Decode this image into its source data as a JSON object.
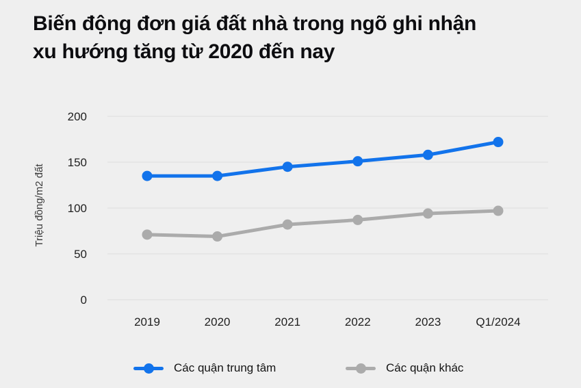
{
  "page": {
    "background": "#efefef"
  },
  "title": {
    "line1": "Biến động đơn giá đất nhà trong ngõ ghi nhận",
    "line2": "xu hướng tăng từ 2020 đến nay"
  },
  "chart_data": {
    "type": "line",
    "categories": [
      "2019",
      "2020",
      "2021",
      "2022",
      "2023",
      "Q1/2024"
    ],
    "series": [
      {
        "name": "Các quận trung tâm",
        "color": "#1273eb",
        "values": [
          135,
          135,
          145,
          151,
          158,
          172
        ]
      },
      {
        "name": "Các quận khác",
        "color": "#ababab",
        "values": [
          71,
          69,
          82,
          87,
          94,
          97
        ]
      }
    ],
    "ylabel": "Triệu đồng/m2 đất",
    "yticks": [
      0,
      50,
      100,
      150,
      200
    ],
    "ylim": [
      0,
      200
    ],
    "grid": true,
    "gridline_color": "#dcdcdc",
    "tick_color": "#1f1f1f",
    "axis_label_color": "#3a3a3a",
    "legend_position": "bottom"
  }
}
